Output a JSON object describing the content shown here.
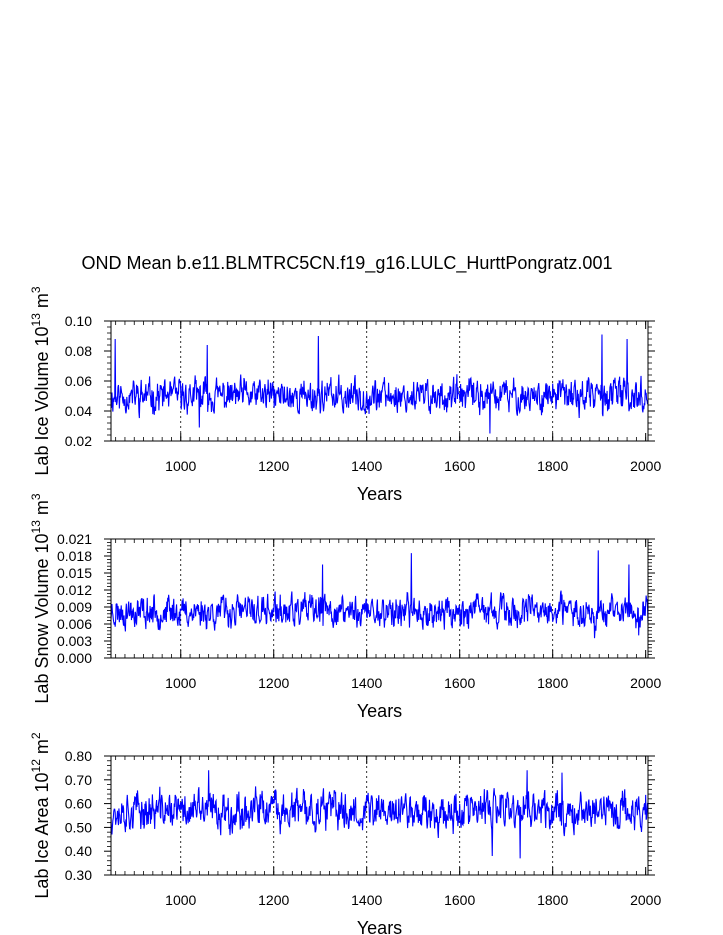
{
  "title": "OND Mean b.e11.BLMTRC5CN.f19_g16.LULC_HurttPongratz.001",
  "colors": {
    "series": "#0000ff",
    "axis": "#000000",
    "grid": "#000000"
  },
  "chart_data": [
    {
      "type": "line",
      "ylabel_text": "Lab Ice Volume 10",
      "ylabel_exp": "13",
      "ylabel_unit": " m",
      "ylabel_unit_exp": "3",
      "xlabel": "Years",
      "xlim": [
        850,
        2005
      ],
      "ylim": [
        0.02,
        0.1
      ],
      "x_ticks": [
        1000,
        1200,
        1400,
        1600,
        1800,
        2000
      ],
      "y_ticks": [
        "0.02",
        "0.04",
        "0.06",
        "0.08",
        "0.10"
      ],
      "grid_x": [
        1000,
        1200,
        1400,
        1600,
        1800
      ],
      "series": {
        "x_start": 850,
        "x_end": 2005,
        "mean": 0.05,
        "amp": 0.0075,
        "min": 0.025,
        "max": 0.09,
        "seed": 11
      },
      "peaks": [
        [
          859,
          0.088
        ],
        [
          1057,
          0.084
        ],
        [
          1296,
          0.09
        ],
        [
          1906,
          0.091
        ],
        [
          1960,
          0.088
        ],
        [
          1665,
          0.025
        ],
        [
          1040,
          0.029
        ]
      ]
    },
    {
      "type": "line",
      "ylabel_text": "Lab Snow Volume 10",
      "ylabel_exp": "13",
      "ylabel_unit": " m",
      "ylabel_unit_exp": "3",
      "xlabel": "Years",
      "xlim": [
        850,
        2005
      ],
      "ylim": [
        0.0,
        0.021
      ],
      "x_ticks": [
        1000,
        1200,
        1400,
        1600,
        1800,
        2000
      ],
      "y_ticks": [
        "0.000",
        "0.003",
        "0.006",
        "0.009",
        "0.012",
        "0.015",
        "0.018",
        "0.021"
      ],
      "grid_x": [
        1000,
        1200,
        1400,
        1600,
        1800
      ],
      "series": {
        "x_start": 850,
        "x_end": 2005,
        "mean": 0.0082,
        "amp": 0.0019,
        "min": 0.003,
        "max": 0.019,
        "seed": 23
      },
      "peaks": [
        [
          1496,
          0.0185
        ],
        [
          1898,
          0.019
        ],
        [
          1305,
          0.0165
        ],
        [
          1964,
          0.0165
        ],
        [
          1890,
          0.0035
        ],
        [
          1985,
          0.004
        ]
      ]
    },
    {
      "type": "line",
      "ylabel_text": "Lab Ice Area 10",
      "ylabel_exp": "12",
      "ylabel_unit": " m",
      "ylabel_unit_exp": "2",
      "xlabel": "Years",
      "xlim": [
        850,
        2005
      ],
      "ylim": [
        0.3,
        0.8
      ],
      "x_ticks": [
        1000,
        1200,
        1400,
        1600,
        1800,
        2000
      ],
      "y_ticks": [
        "0.30",
        "0.40",
        "0.50",
        "0.60",
        "0.70",
        "0.80"
      ],
      "grid_x": [
        1000,
        1200,
        1400,
        1600,
        1800
      ],
      "series": {
        "x_start": 850,
        "x_end": 2005,
        "mean": 0.57,
        "amp": 0.055,
        "min": 0.37,
        "max": 0.74,
        "seed": 37
      },
      "peaks": [
        [
          1060,
          0.74
        ],
        [
          1745,
          0.74
        ],
        [
          1670,
          0.38
        ],
        [
          1730,
          0.37
        ],
        [
          1820,
          0.73
        ]
      ]
    }
  ]
}
